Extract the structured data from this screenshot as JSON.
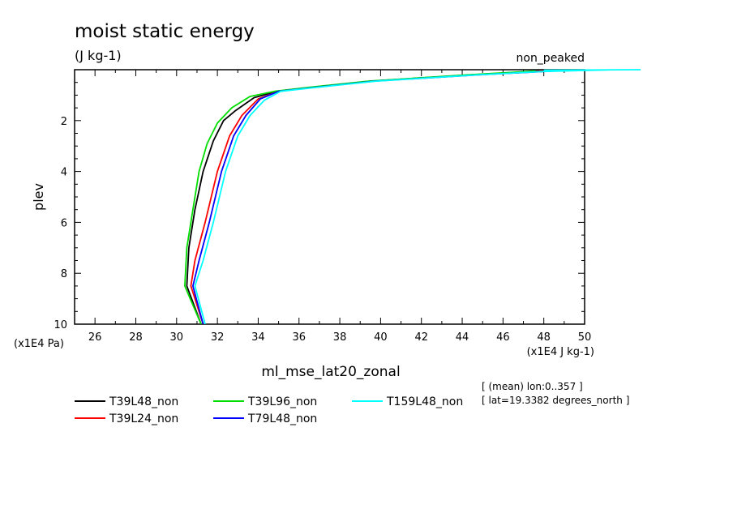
{
  "header": {
    "title": "moist static energy",
    "units": "(J kg-1)",
    "case": "non_peaked"
  },
  "axes": {
    "ylabel": "plev",
    "y_units": "(x1E4 Pa)",
    "x_units": "(x1E4 J kg-1)",
    "xlabel": "ml_mse_lat20_zonal"
  },
  "info": {
    "line1": "[ (mean) lon:0..357 ]",
    "line2": "[ lat=19.3382 degrees_north ]"
  },
  "chart_data": {
    "type": "line",
    "title": "moist static energy",
    "xlabel": "ml_mse_lat20_zonal",
    "ylabel": "plev",
    "xlim": [
      25,
      50
    ],
    "ylim": [
      10,
      0
    ],
    "x_ticks": [
      26,
      28,
      30,
      32,
      34,
      36,
      38,
      40,
      42,
      44,
      46,
      48,
      50
    ],
    "y_ticks": [
      2,
      4,
      6,
      8,
      10
    ],
    "legend_position": "bottom",
    "series": [
      {
        "name": "T39L48_non",
        "color": "#000000",
        "points": [
          [
            47.8,
            0.05
          ],
          [
            44.5,
            0.2
          ],
          [
            39.5,
            0.45
          ],
          [
            36.5,
            0.7
          ],
          [
            34.9,
            0.85
          ],
          [
            33.8,
            1.1
          ],
          [
            32.9,
            1.6
          ],
          [
            32.3,
            2.0
          ],
          [
            31.8,
            2.8
          ],
          [
            31.3,
            4.0
          ],
          [
            30.9,
            5.5
          ],
          [
            30.6,
            7.0
          ],
          [
            30.5,
            8.5
          ],
          [
            31.2,
            10.0
          ]
        ]
      },
      {
        "name": "T39L24_non",
        "color": "#ff0000",
        "points": [
          [
            48.0,
            0.05
          ],
          [
            44.6,
            0.2
          ],
          [
            39.6,
            0.45
          ],
          [
            36.6,
            0.7
          ],
          [
            35.0,
            0.85
          ],
          [
            34.0,
            1.15
          ],
          [
            33.2,
            1.8
          ],
          [
            32.6,
            2.6
          ],
          [
            32.0,
            4.0
          ],
          [
            31.4,
            6.0
          ],
          [
            30.9,
            7.5
          ],
          [
            30.7,
            8.5
          ],
          [
            31.3,
            10.0
          ]
        ]
      },
      {
        "name": "T39L96_non",
        "color": "#00dd00",
        "points": [
          [
            47.6,
            0.05
          ],
          [
            44.3,
            0.2
          ],
          [
            39.4,
            0.45
          ],
          [
            36.4,
            0.7
          ],
          [
            34.8,
            0.85
          ],
          [
            33.6,
            1.05
          ],
          [
            32.7,
            1.5
          ],
          [
            32.0,
            2.1
          ],
          [
            31.5,
            2.9
          ],
          [
            31.1,
            4.0
          ],
          [
            30.8,
            5.5
          ],
          [
            30.5,
            7.0
          ],
          [
            30.4,
            8.5
          ],
          [
            31.2,
            10.0
          ]
        ]
      },
      {
        "name": "T79L48_non",
        "color": "#0000ff",
        "points": [
          [
            48.5,
            0.05
          ],
          [
            44.8,
            0.2
          ],
          [
            39.7,
            0.45
          ],
          [
            36.7,
            0.7
          ],
          [
            35.0,
            0.85
          ],
          [
            34.1,
            1.15
          ],
          [
            33.4,
            1.8
          ],
          [
            32.8,
            2.6
          ],
          [
            32.2,
            4.0
          ],
          [
            31.6,
            6.0
          ],
          [
            31.1,
            7.5
          ],
          [
            30.8,
            8.5
          ],
          [
            31.3,
            10.0
          ]
        ]
      },
      {
        "name": "T159L48_non",
        "color": "#00ffff",
        "points": [
          [
            52.8,
            0.0
          ],
          [
            48.0,
            0.07
          ],
          [
            44.8,
            0.2
          ],
          [
            39.8,
            0.45
          ],
          [
            36.8,
            0.7
          ],
          [
            35.1,
            0.85
          ],
          [
            34.3,
            1.2
          ],
          [
            33.6,
            1.8
          ],
          [
            33.0,
            2.6
          ],
          [
            32.4,
            4.0
          ],
          [
            31.8,
            6.0
          ],
          [
            31.3,
            7.5
          ],
          [
            30.9,
            8.5
          ],
          [
            31.4,
            10.0
          ]
        ]
      }
    ]
  }
}
